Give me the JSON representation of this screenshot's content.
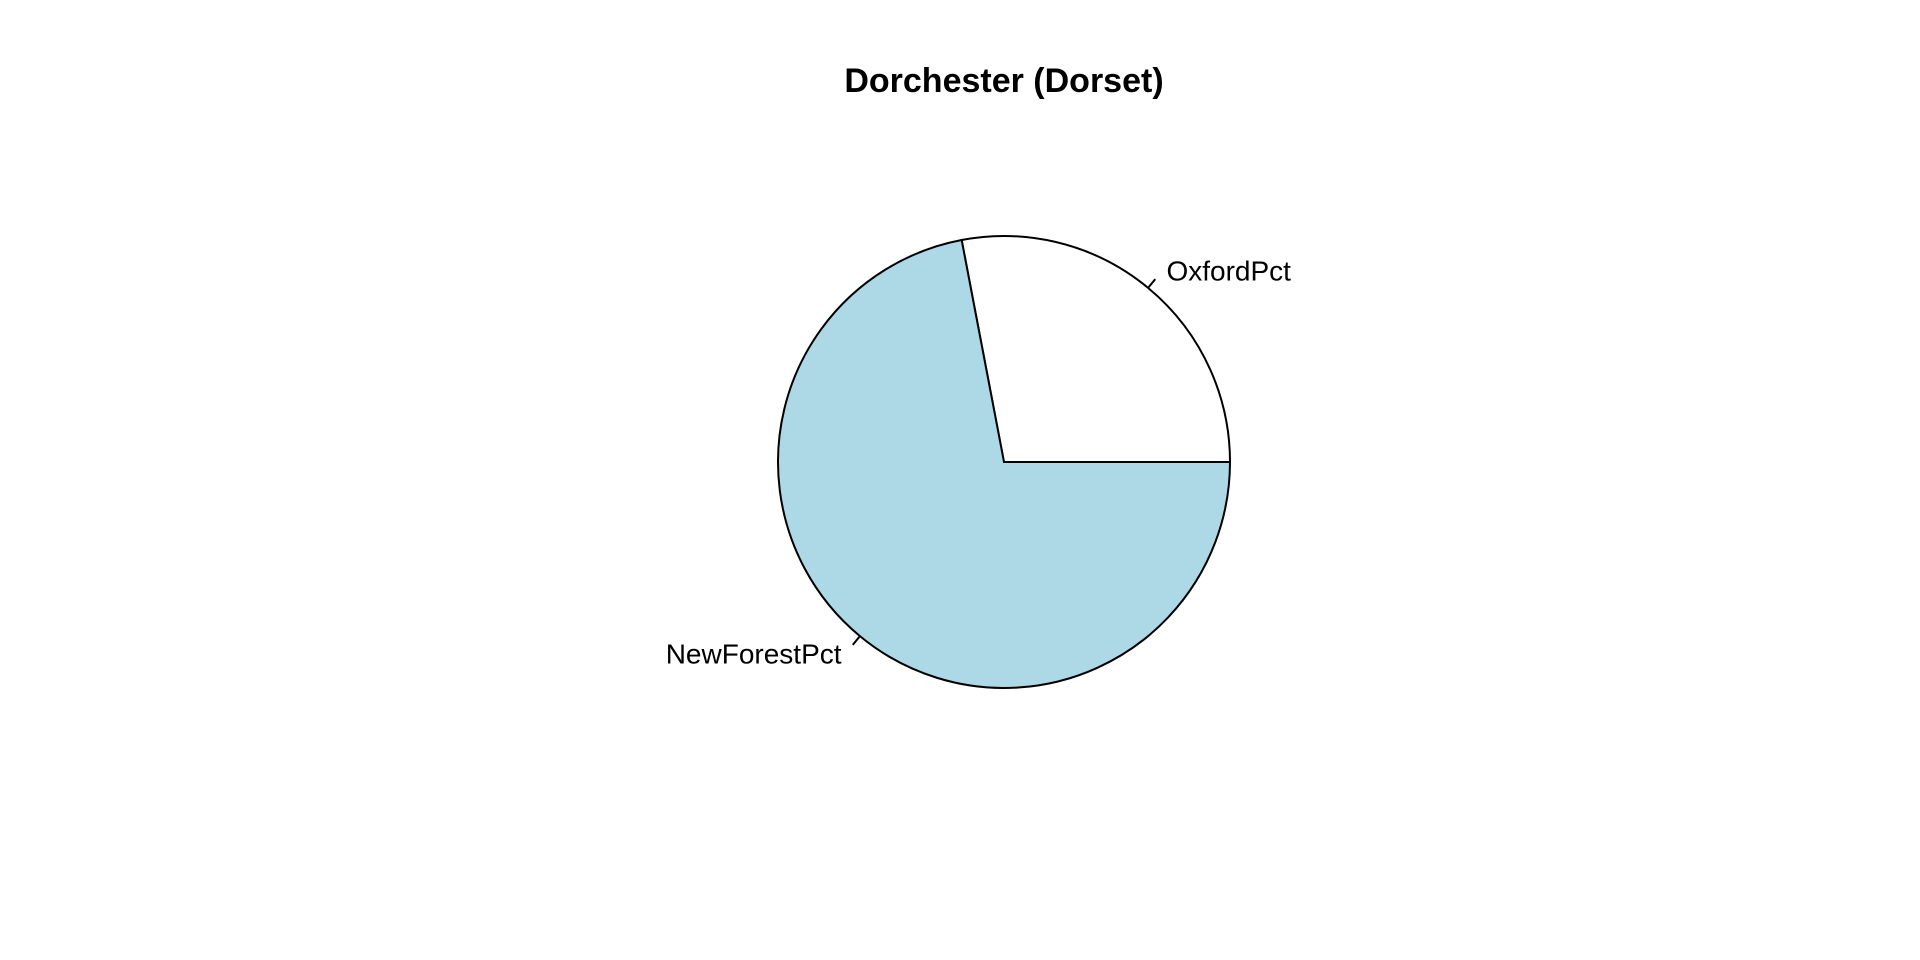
{
  "chart_data": {
    "type": "pie",
    "title": "Dorchester (Dorset)",
    "categories": [
      "OxfordPct",
      "NewForestPct"
    ],
    "values": [
      28,
      72
    ],
    "colors": [
      "#ffffff",
      "#add8e6"
    ],
    "start_angle_deg": 0,
    "direction": "counterclockwise",
    "legend": "none"
  }
}
